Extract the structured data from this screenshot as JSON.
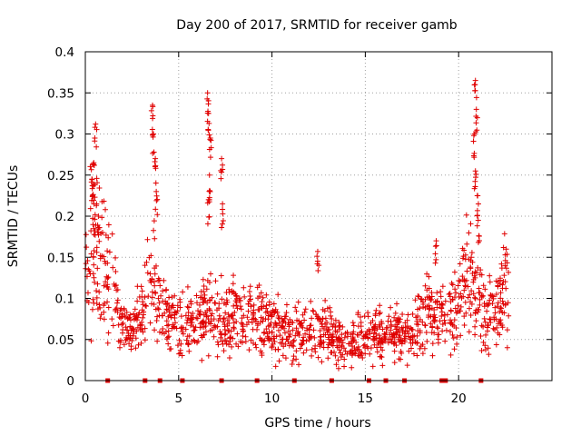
{
  "chart_data": {
    "type": "scatter",
    "title": "Day 200 of 2017, SRMTID for receiver gamb",
    "xlabel": "GPS time / hours",
    "ylabel": "SRMTID / TECUs",
    "xlim": [
      0,
      25
    ],
    "ylim": [
      0,
      0.4
    ],
    "xticks": [
      0,
      5,
      10,
      15,
      20
    ],
    "xtick_labels": [
      "0",
      "5",
      "10",
      "15",
      "20"
    ],
    "yticks": [
      0,
      0.05,
      0.1,
      0.15,
      0.2,
      0.25,
      0.3,
      0.35,
      0.4
    ],
    "ytick_labels": [
      "0",
      "0.05",
      "0.1",
      "0.15",
      "0.2",
      "0.25",
      "0.3",
      "0.35",
      "0.4"
    ],
    "grid": true,
    "marker": "+",
    "color": "#e00000",
    "series": [
      {
        "name": "SRMTID",
        "baseline_profile": [
          [
            0.0,
            0.12
          ],
          [
            0.5,
            0.18
          ],
          [
            1.0,
            0.13
          ],
          [
            1.5,
            0.11
          ],
          [
            2.0,
            0.06
          ],
          [
            2.5,
            0.06
          ],
          [
            3.0,
            0.08
          ],
          [
            3.5,
            0.14
          ],
          [
            4.0,
            0.09
          ],
          [
            4.5,
            0.07
          ],
          [
            5.0,
            0.07
          ],
          [
            5.5,
            0.07
          ],
          [
            6.0,
            0.07
          ],
          [
            6.5,
            0.09
          ],
          [
            7.0,
            0.08
          ],
          [
            7.5,
            0.07
          ],
          [
            8.0,
            0.08
          ],
          [
            8.5,
            0.08
          ],
          [
            9.0,
            0.08
          ],
          [
            9.5,
            0.07
          ],
          [
            10.0,
            0.07
          ],
          [
            10.5,
            0.06
          ],
          [
            11.0,
            0.06
          ],
          [
            11.5,
            0.06
          ],
          [
            12.0,
            0.06
          ],
          [
            12.5,
            0.06
          ],
          [
            13.0,
            0.06
          ],
          [
            13.5,
            0.05
          ],
          [
            14.0,
            0.04
          ],
          [
            14.5,
            0.05
          ],
          [
            15.0,
            0.05
          ],
          [
            15.5,
            0.06
          ],
          [
            16.0,
            0.05
          ],
          [
            16.5,
            0.06
          ],
          [
            17.0,
            0.06
          ],
          [
            17.5,
            0.06
          ],
          [
            18.0,
            0.07
          ],
          [
            18.5,
            0.08
          ],
          [
            19.0,
            0.08
          ],
          [
            19.5,
            0.08
          ],
          [
            20.0,
            0.09
          ],
          [
            20.5,
            0.13
          ],
          [
            21.0,
            0.1
          ],
          [
            21.5,
            0.08
          ],
          [
            22.0,
            0.09
          ],
          [
            22.5,
            0.11
          ],
          [
            22.7,
            0.11
          ]
        ],
        "spikes": [
          {
            "x": 0.55,
            "y": 0.312
          },
          {
            "x": 0.45,
            "y": 0.265
          },
          {
            "x": 0.35,
            "y": 0.245
          },
          {
            "x": 0.7,
            "y": 0.2
          },
          {
            "x": 3.6,
            "y": 0.335
          },
          {
            "x": 3.65,
            "y": 0.3
          },
          {
            "x": 3.75,
            "y": 0.27
          },
          {
            "x": 3.8,
            "y": 0.23
          },
          {
            "x": 6.55,
            "y": 0.35
          },
          {
            "x": 6.6,
            "y": 0.325
          },
          {
            "x": 6.7,
            "y": 0.295
          },
          {
            "x": 6.65,
            "y": 0.25
          },
          {
            "x": 6.6,
            "y": 0.22
          },
          {
            "x": 7.3,
            "y": 0.27
          },
          {
            "x": 7.35,
            "y": 0.215
          },
          {
            "x": 12.45,
            "y": 0.157
          },
          {
            "x": 18.8,
            "y": 0.17
          },
          {
            "x": 20.9,
            "y": 0.365
          },
          {
            "x": 20.95,
            "y": 0.33
          },
          {
            "x": 20.85,
            "y": 0.3
          },
          {
            "x": 20.9,
            "y": 0.255
          },
          {
            "x": 21.0,
            "y": 0.225
          },
          {
            "x": 21.05,
            "y": 0.195
          },
          {
            "x": 22.55,
            "y": 0.16
          }
        ],
        "gaps_at_zero": [
          1.2,
          3.2,
          4.0,
          5.2,
          7.3,
          9.2,
          11.2,
          13.2,
          15.2,
          16.1,
          17.1,
          19.1,
          19.3,
          21.2
        ]
      }
    ]
  }
}
